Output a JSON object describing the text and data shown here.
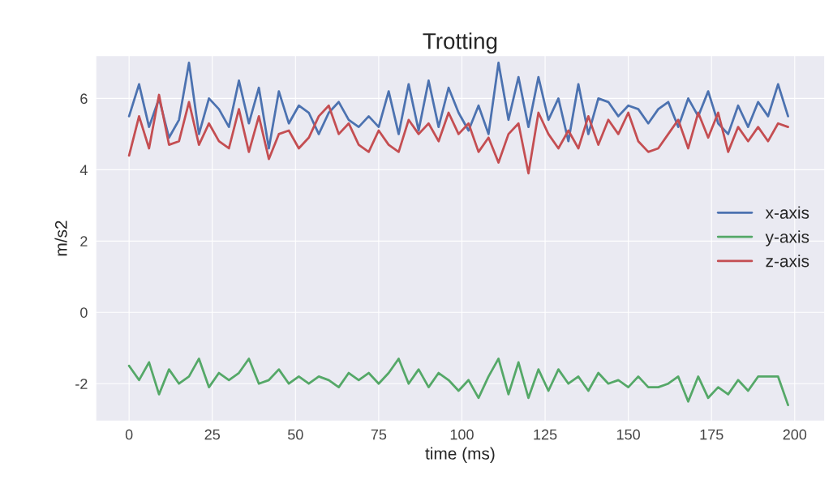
{
  "chart_data": {
    "type": "line",
    "title": "Trotting",
    "xlabel": "time (ms)",
    "ylabel": "m/s2",
    "x": [
      0,
      3,
      6,
      9,
      12,
      15,
      18,
      21,
      24,
      27,
      30,
      33,
      36,
      39,
      42,
      45,
      48,
      51,
      54,
      57,
      60,
      63,
      66,
      69,
      72,
      75,
      78,
      81,
      84,
      87,
      90,
      93,
      96,
      99,
      102,
      105,
      108,
      111,
      114,
      117,
      120,
      123,
      126,
      129,
      132,
      135,
      138,
      141,
      144,
      147,
      150,
      153,
      156,
      159,
      162,
      165,
      168,
      171,
      174,
      177,
      180,
      183,
      186,
      189,
      192,
      195,
      198
    ],
    "series": [
      {
        "name": "x-axis",
        "color": "#4c72b0",
        "values": [
          5.5,
          6.4,
          5.2,
          6.0,
          4.9,
          5.4,
          7.0,
          5.0,
          6.0,
          5.7,
          5.2,
          6.5,
          5.3,
          6.3,
          4.6,
          6.2,
          5.3,
          5.8,
          5.6,
          5.0,
          5.6,
          5.9,
          5.4,
          5.2,
          5.5,
          5.2,
          6.2,
          5.0,
          6.4,
          5.1,
          6.5,
          5.2,
          6.3,
          5.6,
          5.1,
          5.8,
          5.0,
          7.0,
          5.4,
          6.6,
          5.2,
          6.6,
          5.4,
          6.0,
          4.8,
          6.4,
          5.0,
          6.0,
          5.9,
          5.5,
          5.8,
          5.7,
          5.3,
          5.7,
          5.9,
          5.2,
          6.0,
          5.5,
          6.2,
          5.3,
          5.0,
          5.8,
          5.2,
          5.9,
          5.5,
          6.4,
          5.5
        ]
      },
      {
        "name": "y-axis",
        "color": "#55a868",
        "values": [
          -1.5,
          -1.9,
          -1.4,
          -2.3,
          -1.6,
          -2.0,
          -1.8,
          -1.3,
          -2.1,
          -1.7,
          -1.9,
          -1.7,
          -1.3,
          -2.0,
          -1.9,
          -1.6,
          -2.0,
          -1.8,
          -2.0,
          -1.8,
          -1.9,
          -2.1,
          -1.7,
          -1.9,
          -1.7,
          -2.0,
          -1.7,
          -1.3,
          -2.0,
          -1.6,
          -2.1,
          -1.7,
          -1.9,
          -2.2,
          -1.9,
          -2.4,
          -1.8,
          -1.3,
          -2.3,
          -1.4,
          -2.4,
          -1.6,
          -2.2,
          -1.6,
          -2.0,
          -1.8,
          -2.2,
          -1.7,
          -2.0,
          -1.9,
          -2.1,
          -1.8,
          -2.1,
          -2.1,
          -2.0,
          -1.8,
          -2.5,
          -1.8,
          -2.4,
          -2.1,
          -2.3,
          -1.9,
          -2.2,
          -1.8,
          -1.8,
          -1.8,
          -2.6
        ]
      },
      {
        "name": "z-axis",
        "color": "#c44e52",
        "values": [
          4.4,
          5.5,
          4.6,
          6.1,
          4.7,
          4.8,
          5.9,
          4.7,
          5.3,
          4.8,
          4.6,
          5.7,
          4.5,
          5.5,
          4.3,
          5.0,
          5.1,
          4.6,
          4.9,
          5.5,
          5.8,
          5.0,
          5.3,
          4.7,
          4.5,
          5.1,
          4.7,
          4.5,
          5.4,
          5.0,
          5.3,
          4.8,
          5.6,
          5.0,
          5.3,
          4.5,
          4.9,
          4.2,
          5.0,
          5.3,
          3.9,
          5.6,
          5.0,
          4.6,
          5.1,
          4.6,
          5.5,
          4.7,
          5.4,
          5.0,
          5.6,
          4.8,
          4.5,
          4.6,
          5.0,
          5.4,
          4.6,
          5.6,
          4.9,
          5.6,
          4.5,
          5.2,
          4.8,
          5.2,
          4.8,
          5.3,
          5.2
        ]
      }
    ],
    "xlim": [
      -10,
      209
    ],
    "xticks": [
      0,
      25,
      50,
      75,
      100,
      125,
      150,
      175,
      200
    ],
    "ylim": [
      -3.05,
      7.2
    ],
    "yticks": [
      -2,
      0,
      2,
      4,
      6
    ],
    "grid": true,
    "legend": "center right"
  }
}
